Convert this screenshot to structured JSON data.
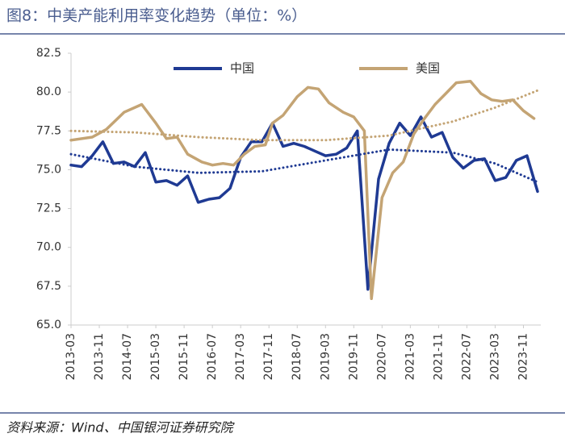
{
  "chart_data": {
    "type": "line",
    "title": "图8：中美产能利用率变化趋势（单位：%）",
    "source": "资料来源：Wind、中国银河证券研究院",
    "xlim": [
      "2013-03",
      "2024-03"
    ],
    "xticks": [
      "2013-03",
      "2013-11",
      "2014-07",
      "2015-03",
      "2015-11",
      "2016-07",
      "2017-03",
      "2017-11",
      "2018-07",
      "2019-03",
      "2019-11",
      "2020-07",
      "2021-03",
      "2021-11",
      "2022-07",
      "2023-03",
      "2023-11"
    ],
    "ylim": [
      65,
      82.5
    ],
    "yticks": [
      {
        "value": 65,
        "label": "65.0"
      },
      67.5,
      {
        "value": 70,
        "label": "70.0"
      },
      72.5,
      {
        "value": 75,
        "label": "75.0"
      },
      77.5,
      {
        "value": 80,
        "label": "80.0"
      },
      82.5
    ],
    "series": [
      {
        "name": "中国",
        "color": "#1f3a93",
        "style": "solid",
        "x": [
          "2013-03",
          "2013-06",
          "2013-09",
          "2013-12",
          "2014-03",
          "2014-06",
          "2014-09",
          "2014-12",
          "2015-03",
          "2015-06",
          "2015-09",
          "2015-12",
          "2016-03",
          "2016-06",
          "2016-09",
          "2016-12",
          "2017-03",
          "2017-06",
          "2017-09",
          "2017-12",
          "2018-03",
          "2018-06",
          "2018-09",
          "2018-12",
          "2019-03",
          "2019-06",
          "2019-09",
          "2019-12",
          "2020-03",
          "2020-06",
          "2020-09",
          "2020-12",
          "2021-03",
          "2021-06",
          "2021-09",
          "2021-12",
          "2022-03",
          "2022-06",
          "2022-09",
          "2022-12",
          "2023-03",
          "2023-06",
          "2023-09",
          "2023-12",
          "2024-03"
        ],
        "values": [
          75.3,
          75.2,
          75.9,
          76.8,
          75.4,
          75.5,
          75.2,
          76.1,
          74.2,
          74.3,
          74.0,
          74.6,
          72.9,
          73.1,
          73.2,
          73.8,
          75.8,
          76.8,
          76.8,
          78.0,
          76.5,
          76.7,
          76.5,
          76.2,
          75.9,
          76.0,
          76.4,
          77.5,
          67.3,
          74.4,
          76.7,
          78.0,
          77.2,
          78.4,
          77.1,
          77.4,
          75.8,
          75.1,
          75.6,
          75.7,
          74.3,
          74.5,
          75.6,
          75.9,
          73.6
        ]
      },
      {
        "name": "美国",
        "color": "#c4a474",
        "style": "solid",
        "x": [
          "2013-03",
          "2013-09",
          "2014-01",
          "2014-06",
          "2014-11",
          "2015-03",
          "2015-06",
          "2015-09",
          "2015-12",
          "2016-04",
          "2016-07",
          "2016-10",
          "2017-01",
          "2017-04",
          "2017-07",
          "2017-10",
          "2017-12",
          "2018-03",
          "2018-07",
          "2018-10",
          "2019-01",
          "2019-04",
          "2019-08",
          "2019-11",
          "2020-02",
          "2020-04",
          "2020-07",
          "2020-10",
          "2021-01",
          "2021-04",
          "2021-07",
          "2021-10",
          "2022-01",
          "2022-04",
          "2022-08",
          "2022-11",
          "2023-02",
          "2023-05",
          "2023-08",
          "2023-11",
          "2024-02"
        ],
        "values": [
          76.9,
          77.1,
          77.6,
          78.7,
          79.2,
          78.0,
          77.0,
          77.1,
          76.0,
          75.5,
          75.3,
          75.4,
          75.3,
          76.0,
          76.5,
          76.6,
          78.0,
          78.5,
          79.7,
          80.3,
          80.2,
          79.3,
          78.7,
          78.4,
          77.5,
          66.7,
          73.2,
          74.8,
          75.5,
          77.3,
          78.3,
          79.2,
          79.9,
          80.6,
          80.7,
          79.9,
          79.5,
          79.4,
          79.5,
          78.8,
          78.3
        ]
      },
      {
        "color": "#1f3a93",
        "style": "dotted",
        "x": [
          "2013-03",
          "2014-09",
          "2016-03",
          "2017-09",
          "2019-03",
          "2020-09",
          "2022-03",
          "2023-03",
          "2024-03"
        ],
        "values": [
          76.0,
          75.2,
          74.8,
          74.9,
          75.6,
          76.3,
          76.1,
          75.4,
          74.2
        ]
      },
      {
        "color": "#c4a474",
        "style": "dotted",
        "x": [
          "2013-03",
          "2014-09",
          "2016-03",
          "2017-09",
          "2019-03",
          "2020-09",
          "2022-03",
          "2023-03",
          "2024-03"
        ],
        "values": [
          77.5,
          77.4,
          77.1,
          76.9,
          76.9,
          77.2,
          78.1,
          79.0,
          80.1
        ]
      }
    ]
  }
}
